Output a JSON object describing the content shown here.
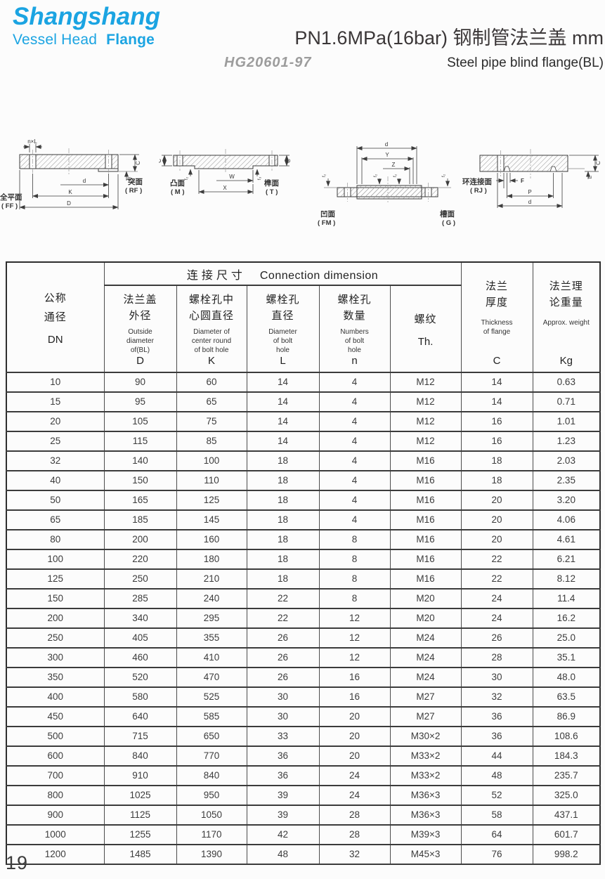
{
  "logo": {
    "brand": "Shangshang",
    "sub_light": "Vessel Head",
    "sub_bold": "Flange",
    "brand_color": "#1ba4e2"
  },
  "titles": {
    "main": "PN1.6MPa(16bar) 钢制管法兰盖  mm",
    "standard": "HG20601-97",
    "subtitle_en": "Steel pipe blind flange(BL)"
  },
  "drawings": {
    "d1": {
      "left_cn": "全平面",
      "left_code": "( FF )",
      "right_cn": "突面",
      "right_code": "( RF )",
      "dim_bolt": "n×L",
      "dim_d": "d",
      "dim_k": "K",
      "dim_big_d": "D",
      "dim_c": "C",
      "dim_h": "h"
    },
    "d2": {
      "left_cn": "凸面",
      "left_code": "( M )",
      "right_cn": "榫面",
      "right_code": "( T )",
      "dim_w": "W",
      "dim_x": "X",
      "dim_c": "C",
      "dim_f2": "f₂",
      "dim_f3": "f₃"
    },
    "d3": {
      "left_cn": "凹面",
      "left_code": "( FM )",
      "right_cn": "槽面",
      "right_code": "( G )",
      "dim_d": "d",
      "dim_y": "Y",
      "dim_z": "Z",
      "dim_f2": "f₂"
    },
    "d4": {
      "left_cn": "环连接面",
      "left_code": "( RJ )",
      "dim_f": "F",
      "dim_p": "P",
      "dim_d": "d",
      "dim_c": "C",
      "dim_e": "E"
    }
  },
  "table": {
    "group_cn": "连接尺寸",
    "group_en": "Connection dimension",
    "columns": [
      {
        "cn": "公称\n通径",
        "en": "",
        "code": "DN"
      },
      {
        "cn": "法兰盖\n外径",
        "en": "Outside\ndiameter\nof(BL)",
        "code": "D"
      },
      {
        "cn": "螺栓孔中\n心圆直径",
        "en": "Diameter of\ncenter round\nof bolt hole",
        "code": "K"
      },
      {
        "cn": "螺栓孔\n直径",
        "en": "Diameter\nof bolt\nhole",
        "code": "L"
      },
      {
        "cn": "螺栓孔\n数量",
        "en": "Numbers\nof bolt\nhole",
        "code": "n"
      },
      {
        "cn": "螺纹",
        "en": "",
        "code": "Th."
      },
      {
        "cn": "法兰\n厚度",
        "en": "Thickness\nof flange",
        "code": "C"
      },
      {
        "cn": "法兰理\n论重量",
        "en": "Approx. weight",
        "code": "Kg"
      }
    ],
    "rows": [
      [
        "10",
        "90",
        "60",
        "14",
        "4",
        "M12",
        "14",
        "0.63"
      ],
      [
        "15",
        "95",
        "65",
        "14",
        "4",
        "M12",
        "14",
        "0.71"
      ],
      [
        "20",
        "105",
        "75",
        "14",
        "4",
        "M12",
        "16",
        "1.01"
      ],
      [
        "25",
        "115",
        "85",
        "14",
        "4",
        "M12",
        "16",
        "1.23"
      ],
      [
        "32",
        "140",
        "100",
        "18",
        "4",
        "M16",
        "18",
        "2.03"
      ],
      [
        "40",
        "150",
        "110",
        "18",
        "4",
        "M16",
        "18",
        "2.35"
      ],
      [
        "50",
        "165",
        "125",
        "18",
        "4",
        "M16",
        "20",
        "3.20"
      ],
      [
        "65",
        "185",
        "145",
        "18",
        "4",
        "M16",
        "20",
        "4.06"
      ],
      [
        "80",
        "200",
        "160",
        "18",
        "8",
        "M16",
        "20",
        "4.61"
      ],
      [
        "100",
        "220",
        "180",
        "18",
        "8",
        "M16",
        "22",
        "6.21"
      ],
      [
        "125",
        "250",
        "210",
        "18",
        "8",
        "M16",
        "22",
        "8.12"
      ],
      [
        "150",
        "285",
        "240",
        "22",
        "8",
        "M20",
        "24",
        "11.4"
      ],
      [
        "200",
        "340",
        "295",
        "22",
        "12",
        "M20",
        "24",
        "16.2"
      ],
      [
        "250",
        "405",
        "355",
        "26",
        "12",
        "M24",
        "26",
        "25.0"
      ],
      [
        "300",
        "460",
        "410",
        "26",
        "12",
        "M24",
        "28",
        "35.1"
      ],
      [
        "350",
        "520",
        "470",
        "26",
        "16",
        "M24",
        "30",
        "48.0"
      ],
      [
        "400",
        "580",
        "525",
        "30",
        "16",
        "M27",
        "32",
        "63.5"
      ],
      [
        "450",
        "640",
        "585",
        "30",
        "20",
        "M27",
        "36",
        "86.9"
      ],
      [
        "500",
        "715",
        "650",
        "33",
        "20",
        "M30×2",
        "36",
        "108.6"
      ],
      [
        "600",
        "840",
        "770",
        "36",
        "20",
        "M33×2",
        "44",
        "184.3"
      ],
      [
        "700",
        "910",
        "840",
        "36",
        "24",
        "M33×2",
        "48",
        "235.7"
      ],
      [
        "800",
        "1025",
        "950",
        "39",
        "24",
        "M36×3",
        "52",
        "325.0"
      ],
      [
        "900",
        "1125",
        "1050",
        "39",
        "28",
        "M36×3",
        "58",
        "437.1"
      ],
      [
        "1000",
        "1255",
        "1170",
        "42",
        "28",
        "M39×3",
        "64",
        "601.7"
      ],
      [
        "1200",
        "1485",
        "1390",
        "48",
        "32",
        "M45×3",
        "76",
        "998.2"
      ]
    ]
  },
  "page_number": "19"
}
